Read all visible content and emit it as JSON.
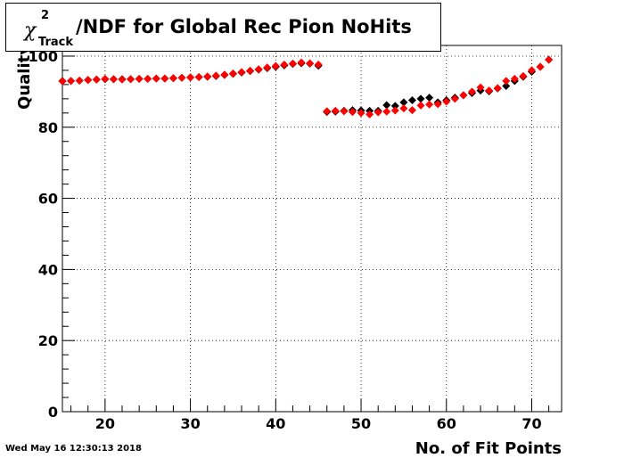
{
  "header": {
    "title_symbol": "χ",
    "title_superscript": "2",
    "title_subscript": "Track",
    "title_text": "/NDF for Global Rec Pion NoHits"
  },
  "footer": {
    "timestamp": "Wed May 16 12:30:13 2018"
  },
  "chart_data": {
    "type": "scatter",
    "xlabel": "No. of Fit Points",
    "ylabel": "Quality",
    "xlim": [
      15,
      73.5
    ],
    "ylim": [
      0,
      103
    ],
    "grid": true,
    "x_ticks": [
      20,
      30,
      40,
      50,
      60,
      70
    ],
    "y_ticks": [
      0,
      20,
      40,
      60,
      80,
      100
    ],
    "series": [
      {
        "color": "#000000",
        "marker": "diamond",
        "points": [
          [
            15,
            93.0
          ],
          [
            16,
            93.0
          ],
          [
            17,
            93.1
          ],
          [
            18,
            93.3
          ],
          [
            19,
            93.4
          ],
          [
            20,
            93.5
          ],
          [
            21,
            93.5
          ],
          [
            22,
            93.5
          ],
          [
            23,
            93.5
          ],
          [
            24,
            93.6
          ],
          [
            25,
            93.6
          ],
          [
            26,
            93.7
          ],
          [
            27,
            93.7
          ],
          [
            28,
            93.8
          ],
          [
            29,
            93.9
          ],
          [
            30,
            94.0
          ],
          [
            31,
            94.1
          ],
          [
            32,
            94.2
          ],
          [
            33,
            94.4
          ],
          [
            34,
            94.7
          ],
          [
            35,
            95.0
          ],
          [
            36,
            95.4
          ],
          [
            37,
            95.8
          ],
          [
            38,
            96.2
          ],
          [
            39,
            96.6
          ],
          [
            40,
            97.0
          ],
          [
            41,
            97.4
          ],
          [
            42,
            97.8
          ],
          [
            43,
            98.0
          ],
          [
            44,
            97.9
          ],
          [
            45,
            97.3
          ],
          [
            46,
            84.3
          ],
          [
            47,
            84.4
          ],
          [
            48,
            84.6
          ],
          [
            49,
            84.8
          ],
          [
            50,
            84.7
          ],
          [
            51,
            84.6
          ],
          [
            52,
            84.6
          ],
          [
            53,
            86.2
          ],
          [
            54,
            86.0
          ],
          [
            55,
            87.0
          ],
          [
            56,
            87.6
          ],
          [
            57,
            88.0
          ],
          [
            58,
            88.3
          ],
          [
            59,
            87.0
          ],
          [
            60,
            87.6
          ],
          [
            61,
            88.3
          ],
          [
            62,
            89.0
          ],
          [
            63,
            89.6
          ],
          [
            64,
            90.3
          ],
          [
            65,
            90.1
          ],
          [
            66,
            90.9
          ],
          [
            67,
            91.6
          ],
          [
            68,
            93.0
          ],
          [
            69,
            94.2
          ],
          [
            70,
            95.6
          ],
          [
            71,
            97.0
          ],
          [
            72,
            99.0
          ]
        ]
      },
      {
        "color": "#ff0000",
        "marker": "diamond",
        "points": [
          [
            15,
            92.9
          ],
          [
            16,
            93.0
          ],
          [
            17,
            93.1
          ],
          [
            18,
            93.3
          ],
          [
            19,
            93.4
          ],
          [
            20,
            93.6
          ],
          [
            21,
            93.5
          ],
          [
            22,
            93.4
          ],
          [
            23,
            93.5
          ],
          [
            24,
            93.6
          ],
          [
            25,
            93.6
          ],
          [
            26,
            93.7
          ],
          [
            27,
            93.7
          ],
          [
            28,
            93.8
          ],
          [
            29,
            93.9
          ],
          [
            30,
            94.0
          ],
          [
            31,
            94.1
          ],
          [
            32,
            94.3
          ],
          [
            33,
            94.5
          ],
          [
            34,
            94.8
          ],
          [
            35,
            95.1
          ],
          [
            36,
            95.5
          ],
          [
            37,
            95.9
          ],
          [
            38,
            96.3
          ],
          [
            39,
            96.8
          ],
          [
            40,
            97.2
          ],
          [
            41,
            97.6
          ],
          [
            42,
            97.9
          ],
          [
            43,
            98.2
          ],
          [
            44,
            98.0
          ],
          [
            45,
            97.6
          ],
          [
            46,
            84.5
          ],
          [
            47,
            84.6
          ],
          [
            48,
            84.5
          ],
          [
            49,
            84.3
          ],
          [
            50,
            84.0
          ],
          [
            51,
            83.6
          ],
          [
            52,
            84.2
          ],
          [
            53,
            84.4
          ],
          [
            54,
            84.7
          ],
          [
            55,
            85.3
          ],
          [
            56,
            84.8
          ],
          [
            57,
            86.1
          ],
          [
            58,
            86.4
          ],
          [
            59,
            86.5
          ],
          [
            60,
            87.2
          ],
          [
            61,
            88.0
          ],
          [
            62,
            89.0
          ],
          [
            63,
            90.0
          ],
          [
            64,
            91.2
          ],
          [
            65,
            90.3
          ],
          [
            66,
            91.0
          ],
          [
            67,
            93.0
          ],
          [
            68,
            93.6
          ],
          [
            69,
            94.4
          ],
          [
            70,
            96.0
          ],
          [
            71,
            97.0
          ],
          [
            72,
            99.0
          ]
        ]
      }
    ]
  }
}
